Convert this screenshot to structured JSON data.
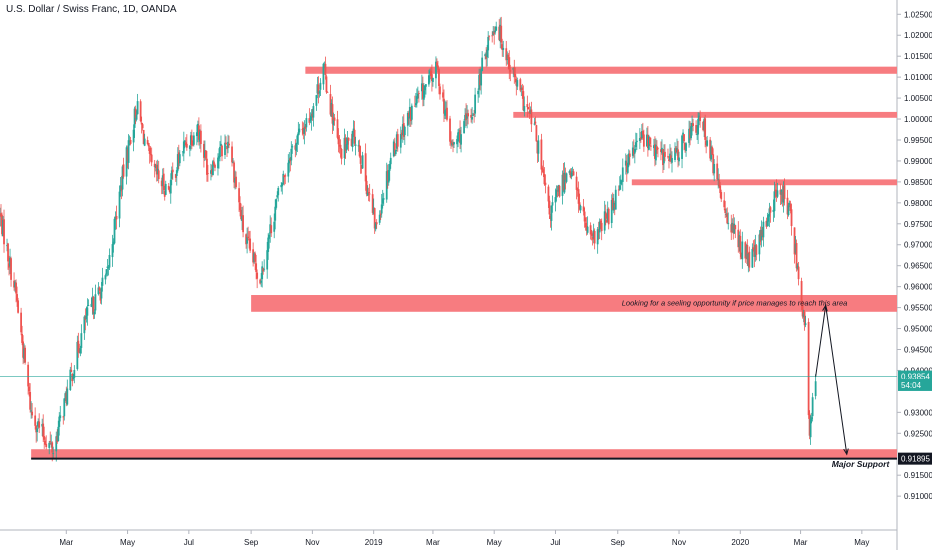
{
  "chart_data": {
    "type": "candlestick",
    "title": "U.S. Dollar / Swiss Franc, 1D, OANDA",
    "ylim": [
      0.9055,
      1.0265
    ],
    "y_ticks": [
      1.025,
      1.02,
      1.015,
      1.01,
      1.005,
      1.0,
      0.995,
      0.99,
      0.985,
      0.98,
      0.975,
      0.97,
      0.965,
      0.96,
      0.955,
      0.95,
      0.945,
      0.94,
      0.93,
      0.925,
      0.915,
      0.91
    ],
    "y_tick_labels": [
      "1.02500",
      "1.02000",
      "1.01500",
      "1.01000",
      "1.00500",
      "1.00000",
      "0.99500",
      "0.99000",
      "0.98500",
      "0.98000",
      "0.97500",
      "0.97000",
      "0.96500",
      "0.96000",
      "0.95500",
      "0.95000",
      "0.94500",
      "0.94000",
      "0.93000",
      "0.92500",
      "0.91500",
      "0.91000"
    ],
    "x_ticks": [
      "2018-03-01",
      "2018-05-01",
      "2018-07-01",
      "2018-09-01",
      "2018-11-01",
      "2019-01-01",
      "2019-03-01",
      "2019-05-01",
      "2019-07-01",
      "2019-09-01",
      "2019-11-01",
      "2020-01-01",
      "2020-03-01",
      "2020-05-01"
    ],
    "x_tick_labels": [
      "Mar",
      "May",
      "Jul",
      "Sep",
      "Nov",
      "2019",
      "Mar",
      "May",
      "Jul",
      "Sep",
      "Nov",
      "2020",
      "Mar",
      "May"
    ],
    "x_range": [
      "2017-12-25",
      "2020-06-05"
    ],
    "price_path": [
      {
        "date": "2017-12-25",
        "price": 0.977
      },
      {
        "date": "2018-01-10",
        "price": 0.958
      },
      {
        "date": "2018-01-25",
        "price": 0.93
      },
      {
        "date": "2018-02-05",
        "price": 0.925
      },
      {
        "date": "2018-02-16",
        "price": 0.921
      },
      {
        "date": "2018-02-28",
        "price": 0.933
      },
      {
        "date": "2018-03-20",
        "price": 0.952
      },
      {
        "date": "2018-04-10",
        "price": 0.962
      },
      {
        "date": "2018-04-25",
        "price": 0.985
      },
      {
        "date": "2018-05-10",
        "price": 1.003
      },
      {
        "date": "2018-05-25",
        "price": 0.988
      },
      {
        "date": "2018-06-10",
        "price": 0.983
      },
      {
        "date": "2018-06-25",
        "price": 0.993
      },
      {
        "date": "2018-07-10",
        "price": 0.998
      },
      {
        "date": "2018-07-20",
        "price": 0.988
      },
      {
        "date": "2018-08-10",
        "price": 0.995
      },
      {
        "date": "2018-08-25",
        "price": 0.972
      },
      {
        "date": "2018-09-10",
        "price": 0.962
      },
      {
        "date": "2018-09-25",
        "price": 0.979
      },
      {
        "date": "2018-10-10",
        "price": 0.992
      },
      {
        "date": "2018-10-30",
        "price": 1.001
      },
      {
        "date": "2018-11-12",
        "price": 1.012
      },
      {
        "date": "2018-11-28",
        "price": 0.992
      },
      {
        "date": "2018-12-15",
        "price": 0.996
      },
      {
        "date": "2019-01-03",
        "price": 0.974
      },
      {
        "date": "2019-01-20",
        "price": 0.993
      },
      {
        "date": "2019-02-10",
        "price": 1.003
      },
      {
        "date": "2019-03-05",
        "price": 1.012
      },
      {
        "date": "2019-03-20",
        "price": 0.993
      },
      {
        "date": "2019-04-10",
        "price": 1.002
      },
      {
        "date": "2019-04-25",
        "price": 1.019
      },
      {
        "date": "2019-05-03",
        "price": 1.023
      },
      {
        "date": "2019-05-25",
        "price": 1.007
      },
      {
        "date": "2019-06-10",
        "price": 0.998
      },
      {
        "date": "2019-06-25",
        "price": 0.977
      },
      {
        "date": "2019-07-15",
        "price": 0.989
      },
      {
        "date": "2019-08-05",
        "price": 0.97
      },
      {
        "date": "2019-08-25",
        "price": 0.978
      },
      {
        "date": "2019-09-05",
        "price": 0.987
      },
      {
        "date": "2019-09-25",
        "price": 0.996
      },
      {
        "date": "2019-10-10",
        "price": 0.992
      },
      {
        "date": "2019-10-25",
        "price": 0.99
      },
      {
        "date": "2019-11-12",
        "price": 0.997
      },
      {
        "date": "2019-11-25",
        "price": 0.999
      },
      {
        "date": "2019-12-10",
        "price": 0.984
      },
      {
        "date": "2019-12-25",
        "price": 0.973
      },
      {
        "date": "2020-01-10",
        "price": 0.966
      },
      {
        "date": "2020-01-20",
        "price": 0.97
      },
      {
        "date": "2020-01-28",
        "price": 0.977
      },
      {
        "date": "2020-02-10",
        "price": 0.984
      },
      {
        "date": "2020-02-20",
        "price": 0.977
      },
      {
        "date": "2020-02-28",
        "price": 0.963
      },
      {
        "date": "2020-03-06",
        "price": 0.949
      },
      {
        "date": "2020-03-10",
        "price": 0.924
      },
      {
        "date": "2020-03-16",
        "price": 0.939
      }
    ],
    "zones": [
      {
        "from": "2018-10-25",
        "to": "2020-06-05",
        "high": 1.0125,
        "low": 1.0108
      },
      {
        "from": "2019-05-20",
        "to": "2020-06-05",
        "high": 1.0017,
        "low": 1.0003
      },
      {
        "from": "2019-09-15",
        "to": "2020-06-05",
        "high": 0.9856,
        "low": 0.9842
      },
      {
        "from": "2018-09-01",
        "to": "2020-06-05",
        "high": 0.958,
        "low": 0.954
      },
      {
        "from": "2018-01-25",
        "to": "2020-06-05",
        "high": 0.9212,
        "low": 0.919
      }
    ],
    "support_level": 0.91895,
    "current_level": 0.93854,
    "annotations": [
      {
        "text": "Looking for a seeling opportunity if price manages to reach this area",
        "date": "2019-09-05",
        "price": 0.9555
      },
      {
        "text": "Major Support",
        "date": "2020-04-01",
        "price": 0.917
      }
    ],
    "projection_path": [
      {
        "date": "2020-03-16",
        "price": 0.9385
      },
      {
        "date": "2020-03-26",
        "price": 0.9555
      },
      {
        "date": "2020-04-16",
        "price": 0.92
      }
    ],
    "price_labels": [
      {
        "text": "0.93854",
        "price": 0.93854,
        "color": "#26a69a"
      },
      {
        "text": "54:04",
        "price": 0.93654,
        "color": "#26a69a"
      },
      {
        "text": "0.91895",
        "price": 0.91895,
        "color": "#131722"
      }
    ],
    "colors": {
      "up": "#26a69a",
      "down": "#ef5350",
      "zone": "#f77c80",
      "current_line": "#26a69a",
      "support_line": "#131722"
    },
    "grid": false,
    "legend": "none"
  }
}
